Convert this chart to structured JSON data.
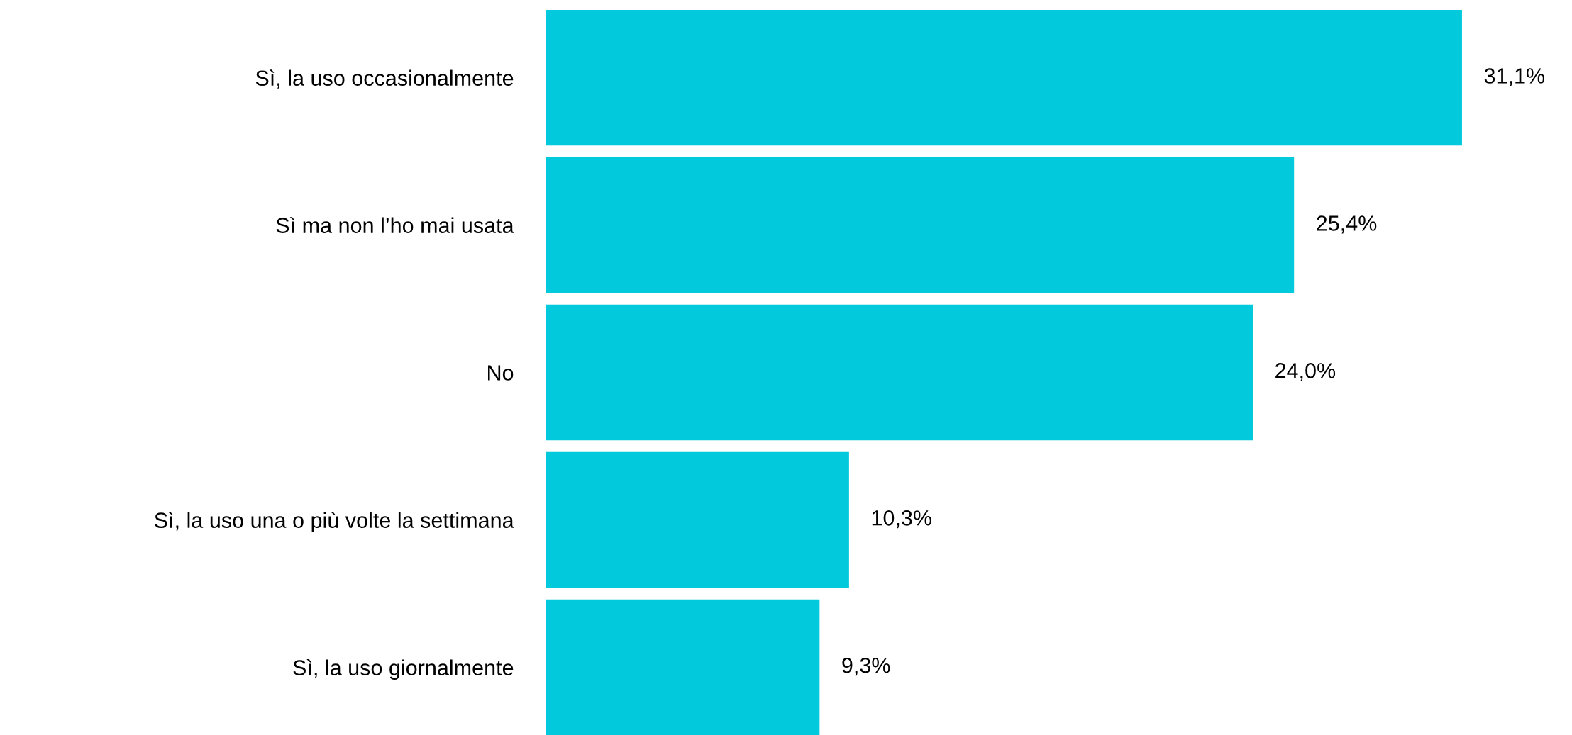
{
  "chart_data": {
    "type": "bar",
    "orientation": "horizontal",
    "categories": [
      "Sì, la uso occasionalmente",
      "Sì ma non l’ho mai usata",
      "No",
      "Sì, la uso una o più volte la settimana",
      "Sì, la uso giornalmente"
    ],
    "values": [
      31.1,
      25.4,
      24.0,
      10.3,
      9.3
    ],
    "value_labels": [
      "31,1%",
      "25,4%",
      "24,0%",
      "10,3%",
      "9,3%"
    ],
    "color": "#02c9dc",
    "grid": false,
    "legend": false,
    "tick_labels": "y"
  }
}
